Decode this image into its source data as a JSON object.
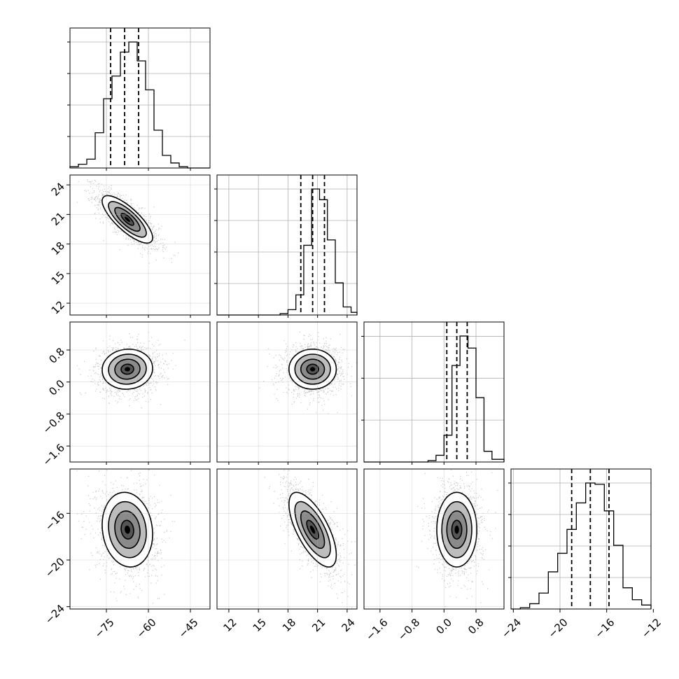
{
  "chart_data": {
    "type": "corner",
    "n_params": 4,
    "title": "",
    "param_labels": [
      "",
      "",
      "",
      ""
    ],
    "ranges": [
      [
        -88,
        -38
      ],
      [
        10.8,
        25
      ],
      [
        -2.0,
        1.5
      ],
      [
        -24.2,
        -12.2
      ]
    ],
    "ticks": [
      [
        -75,
        -60,
        -45
      ],
      [
        12,
        15,
        18,
        21,
        24
      ],
      [
        -1.6,
        -0.8,
        0.0,
        0.8
      ],
      [
        -24,
        -20,
        -16,
        -12
      ]
    ],
    "tick_labels": [
      [
        "−75",
        "−60",
        "−45"
      ],
      [
        "12",
        "15",
        "18",
        "21",
        "24"
      ],
      [
        "−1.6",
        "−0.8",
        "0.0",
        "0.8"
      ],
      [
        "−24",
        "−20",
        "−16",
        "−12"
      ]
    ],
    "histograms": [
      {
        "bins": [
          -88,
          -85,
          -82,
          -79,
          -76,
          -73,
          -70,
          -67,
          -64,
          -61,
          -58,
          -55,
          -52,
          -49,
          -46,
          -43,
          -40,
          -38
        ],
        "counts": [
          0.01,
          0.03,
          0.07,
          0.28,
          0.55,
          0.73,
          0.92,
          1.0,
          0.85,
          0.62,
          0.3,
          0.1,
          0.04,
          0.01,
          0.0,
          0.0,
          0.0
        ],
        "quantiles": [
          -73.5,
          -68.5,
          -63.5
        ]
      },
      {
        "bins": [
          10.8,
          11.6,
          12.4,
          13.2,
          14.0,
          14.8,
          15.6,
          16.4,
          17.2,
          18.0,
          18.8,
          19.6,
          20.4,
          21.2,
          22.0,
          22.8,
          23.6,
          24.4,
          25.0
        ],
        "counts": [
          0,
          0,
          0,
          0,
          0,
          0,
          0,
          0,
          0.01,
          0.04,
          0.15,
          0.52,
          0.94,
          0.86,
          0.56,
          0.24,
          0.06,
          0.02
        ],
        "quantiles": [
          19.3,
          20.5,
          21.7
        ]
      },
      {
        "bins": [
          -2.0,
          -1.8,
          -1.6,
          -1.4,
          -1.2,
          -1.0,
          -0.8,
          -0.6,
          -0.4,
          -0.2,
          0.0,
          0.2,
          0.4,
          0.6,
          0.8,
          1.0,
          1.2,
          1.5
        ],
        "counts": [
          0,
          0,
          0,
          0,
          0,
          0,
          0,
          0,
          0.01,
          0.05,
          0.2,
          0.72,
          0.94,
          0.85,
          0.48,
          0.08,
          0.02
        ],
        "quantiles": [
          0.07,
          0.32,
          0.58
        ]
      },
      {
        "bins": [
          -24.2,
          -23.4,
          -22.6,
          -21.8,
          -21.0,
          -20.2,
          -19.4,
          -18.6,
          -17.8,
          -17.0,
          -16.2,
          -15.4,
          -14.6,
          -13.8,
          -13.0,
          -12.2
        ],
        "counts": [
          0.0,
          0.01,
          0.04,
          0.12,
          0.28,
          0.42,
          0.6,
          0.8,
          0.95,
          0.94,
          0.74,
          0.48,
          0.16,
          0.07,
          0.03
        ],
        "quantiles": [
          -19.0,
          -17.4,
          -15.8
        ]
      }
    ],
    "pairs": [
      {
        "x_index": 0,
        "y_index": 1,
        "mean": [
          -67.5,
          20.5
        ],
        "std": [
          4.5,
          1.2
        ],
        "corr": -0.78
      },
      {
        "x_index": 0,
        "y_index": 2,
        "mean": [
          -67.5,
          0.32
        ],
        "std": [
          4.5,
          0.25
        ],
        "corr": 0.05
      },
      {
        "x_index": 1,
        "y_index": 2,
        "mean": [
          20.5,
          0.32
        ],
        "std": [
          1.2,
          0.25
        ],
        "corr": 0.0
      },
      {
        "x_index": 0,
        "y_index": 3,
        "mean": [
          -67.5,
          -17.4
        ],
        "std": [
          4.5,
          1.6
        ],
        "corr": -0.12
      },
      {
        "x_index": 1,
        "y_index": 3,
        "mean": [
          20.5,
          -17.4
        ],
        "std": [
          1.2,
          1.6
        ],
        "corr": -0.68
      },
      {
        "x_index": 2,
        "y_index": 3,
        "mean": [
          0.32,
          -17.4
        ],
        "std": [
          0.25,
          1.6
        ],
        "corr": 0.0
      }
    ],
    "contour_levels_sigma": [
      0.5,
      1.0,
      1.5,
      2.0
    ],
    "grid": true,
    "colors": {
      "line": "#000000",
      "grid": "#b0b0b0",
      "points": "#9a9a9a",
      "background": "#ffffff"
    }
  }
}
